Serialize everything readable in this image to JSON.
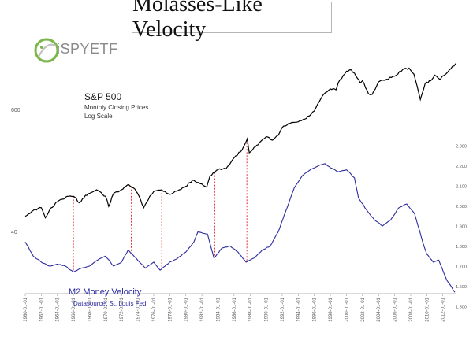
{
  "header": {
    "title": "Molasses-Like Velocity"
  },
  "logo": {
    "text": "SPYETF",
    "prefix": "i"
  },
  "chart_data": {
    "type": "line",
    "title": "Molasses-Like Velocity",
    "x_tick_labels": [
      "1960-01-01",
      "1962-01-01",
      "1964-01-01",
      "1966-01-01",
      "1968-01-01",
      "1970-01-01",
      "1972-01-01",
      "1974-01-01",
      "1976-01-01",
      "1978-01-01",
      "1980-01-01",
      "1982-01-01",
      "1984-01-01",
      "1986-01-01",
      "1988-01-01",
      "1990-01-01",
      "1992-01-01",
      "1994-01-01",
      "1996-01-01",
      "1998-01-01",
      "2000-01-01",
      "2002-01-01",
      "2004-01-01",
      "2006-01-01",
      "2008-01-01",
      "2010-01-01",
      "2012-01-01"
    ],
    "x_range": [
      "1960-01-01",
      "2013-08-01"
    ],
    "left_axis": {
      "scale": "log",
      "tick_labels": [
        "600",
        "40"
      ],
      "ticks": [
        600,
        40
      ]
    },
    "right_axis": {
      "tick_labels": [
        "2.300",
        "2.200",
        "2.100",
        "2.000",
        "1.900",
        "1.800",
        "1.700",
        "1.600",
        "1.500"
      ],
      "ylim": [
        1.5,
        2.3
      ]
    },
    "annotations": {
      "sp_title": "S&P 500",
      "sp_sub1": "Monthly Closing Prices",
      "sp_sub2": "Log Scale",
      "vel_title": "M2 Money Velocity",
      "vel_source": "Datasource: St. Louis Fed"
    },
    "series": [
      {
        "name": "S&P 500",
        "axis": "left",
        "color": "#000000",
        "x": [
          1960.0,
          1961.0,
          1962.0,
          1962.5,
          1963.0,
          1964.0,
          1965.0,
          1966.0,
          1966.75,
          1967.5,
          1968.0,
          1968.9,
          1970.0,
          1970.4,
          1971.0,
          1972.0,
          1972.9,
          1973.5,
          1974.0,
          1974.75,
          1975.5,
          1976.0,
          1977.0,
          1978.0,
          1978.5,
          1979.0,
          1980.0,
          1980.5,
          1981.0,
          1982.0,
          1982.6,
          1983.0,
          1984.0,
          1985.0,
          1986.0,
          1987.0,
          1987.65,
          1987.9,
          1988.5,
          1989.0,
          1990.0,
          1990.8,
          1991.5,
          1992.0,
          1993.0,
          1994.0,
          1995.0,
          1996.0,
          1997.0,
          1998.0,
          1998.7,
          1999.0,
          2000.0,
          2000.6,
          2001.0,
          2001.7,
          2002.0,
          2002.75,
          2003.2,
          2004.0,
          2005.0,
          2006.0,
          2007.0,
          2007.8,
          2008.4,
          2009.2,
          2009.8,
          2010.5,
          2011.0,
          2011.7,
          2012.0,
          2013.0,
          2013.6
        ],
        "values": [
          58,
          66,
          70,
          56,
          66,
          80,
          88,
          90,
          78,
          92,
          96,
          104,
          90,
          72,
          96,
          104,
          116,
          108,
          96,
          70,
          90,
          100,
          104,
          94,
          98,
          102,
          112,
          122,
          128,
          118,
          110,
          140,
          162,
          165,
          210,
          250,
          320,
          235,
          265,
          280,
          335,
          310,
          345,
          410,
          450,
          465,
          500,
          590,
          820,
          960,
          940,
          1110,
          1420,
          1460,
          1360,
          1100,
          1150,
          860,
          850,
          1120,
          1190,
          1270,
          1470,
          1520,
          1330,
          760,
          1080,
          1150,
          1300,
          1180,
          1280,
          1500,
          1680
        ]
      },
      {
        "name": "M2 Money Velocity",
        "axis": "right",
        "color": "#2b2b9e",
        "x": [
          1960.0,
          1961.0,
          1962.0,
          1963.0,
          1964.0,
          1965.0,
          1966.0,
          1967.0,
          1968.0,
          1969.0,
          1970.0,
          1971.0,
          1972.0,
          1972.8,
          1974.0,
          1975.0,
          1976.0,
          1976.8,
          1978.0,
          1979.0,
          1980.0,
          1981.0,
          1981.5,
          1982.7,
          1983.5,
          1984.5,
          1985.5,
          1986.5,
          1987.5,
          1988.5,
          1989.5,
          1990.5,
          1991.5,
          1992.5,
          1993.5,
          1994.5,
          1995.5,
          1996.5,
          1997.3,
          1998.0,
          1999.0,
          2000.0,
          2001.0,
          2001.5,
          2002.5,
          2003.5,
          2004.5,
          2005.5,
          2006.5,
          2007.5,
          2008.5,
          2009.5,
          2010.0,
          2010.8,
          2011.5,
          2012.5,
          2013.5
        ],
        "values": [
          1.82,
          1.75,
          1.72,
          1.7,
          1.71,
          1.7,
          1.67,
          1.69,
          1.7,
          1.73,
          1.75,
          1.7,
          1.72,
          1.78,
          1.73,
          1.69,
          1.72,
          1.68,
          1.72,
          1.74,
          1.77,
          1.82,
          1.87,
          1.86,
          1.74,
          1.79,
          1.8,
          1.77,
          1.72,
          1.74,
          1.78,
          1.8,
          1.87,
          1.98,
          2.09,
          2.15,
          2.18,
          2.2,
          2.21,
          2.19,
          2.17,
          2.18,
          2.14,
          2.04,
          1.98,
          1.93,
          1.9,
          1.93,
          1.99,
          2.01,
          1.96,
          1.82,
          1.76,
          1.72,
          1.73,
          1.63,
          1.57
        ]
      }
    ],
    "grid": false,
    "legend": "none"
  }
}
